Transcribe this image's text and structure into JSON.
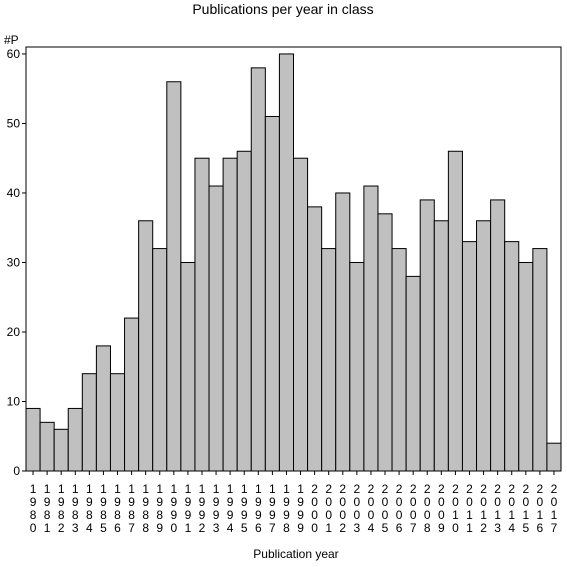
{
  "chart_data": {
    "type": "bar",
    "title": "Publications per year in class",
    "ylabel": "#P",
    "xlabel": "Publication year",
    "ylim": [
      0,
      61
    ],
    "yticks": [
      0,
      10,
      20,
      30,
      40,
      50,
      60
    ],
    "grid": false,
    "bar_color": "#c0c0c0",
    "categories": [
      "1980",
      "1981",
      "1982",
      "1983",
      "1984",
      "1985",
      "1986",
      "1987",
      "1988",
      "1989",
      "1990",
      "1991",
      "1992",
      "1993",
      "1994",
      "1995",
      "1996",
      "1997",
      "1998",
      "1999",
      "2000",
      "2001",
      "2002",
      "2003",
      "2004",
      "2005",
      "2006",
      "2007",
      "2008",
      "2009",
      "2010",
      "2011",
      "2012",
      "2013",
      "2014",
      "2015",
      "2016",
      "2017"
    ],
    "values": [
      9,
      7,
      6,
      9,
      14,
      18,
      14,
      22,
      36,
      32,
      56,
      30,
      45,
      41,
      45,
      46,
      58,
      51,
      60,
      45,
      38,
      32,
      40,
      30,
      41,
      37,
      32,
      28,
      39,
      36,
      46,
      33,
      36,
      39,
      33,
      30,
      32,
      4
    ]
  }
}
